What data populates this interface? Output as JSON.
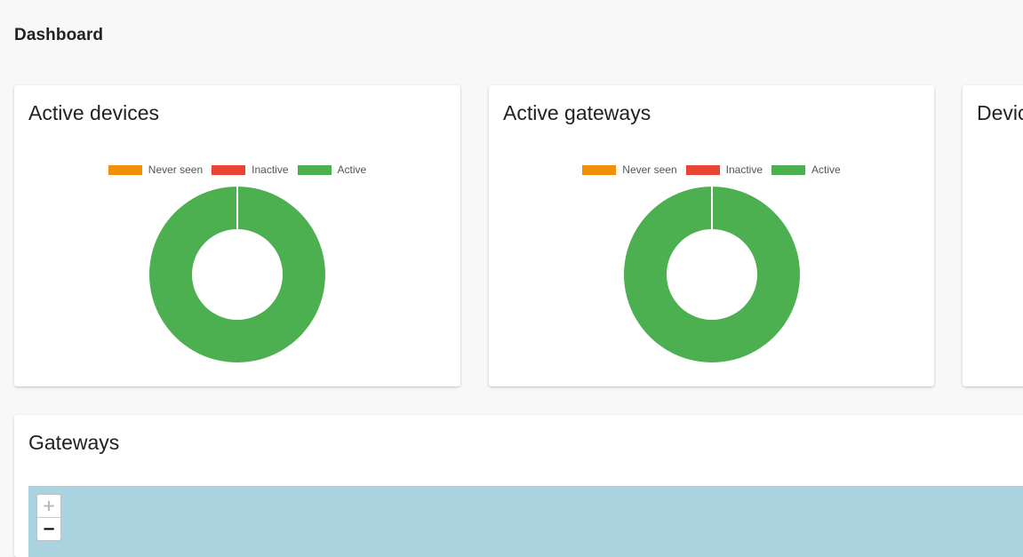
{
  "page": {
    "title": "Dashboard"
  },
  "colors": {
    "never_seen": "#f28f08",
    "inactive": "#e84536",
    "active": "#4caf50",
    "map_water": "#aad3df"
  },
  "cards": {
    "active_devices": {
      "title": "Active devices",
      "chart_data": {
        "type": "pie",
        "variant": "doughnut",
        "categories": [
          "Never seen",
          "Inactive",
          "Active"
        ],
        "values": [
          0,
          0,
          1
        ],
        "legend": "top"
      }
    },
    "active_gateways": {
      "title": "Active gateways",
      "chart_data": {
        "type": "pie",
        "variant": "doughnut",
        "categories": [
          "Never seen",
          "Inactive",
          "Active"
        ],
        "values": [
          0,
          0,
          1
        ],
        "legend": "top"
      }
    },
    "device_partial": {
      "title": "Devic"
    }
  },
  "legend": {
    "never_seen": "Never seen",
    "inactive": "Inactive",
    "active": "Active"
  },
  "gateways": {
    "title": "Gateways",
    "map": {
      "zoom_in": "+",
      "zoom_out": "−",
      "zoom_in_disabled": true
    }
  }
}
